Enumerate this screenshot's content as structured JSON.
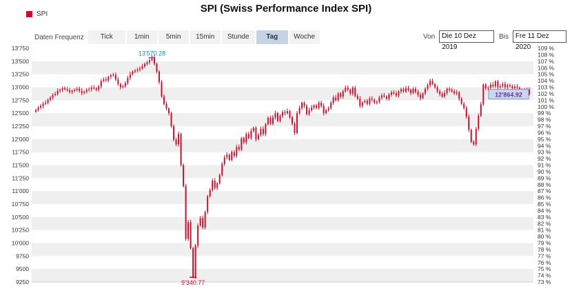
{
  "chart_data": {
    "type": "candlestick",
    "title": "SPI (Swiss Performance Index SPI)",
    "series": [
      {
        "name": "SPI",
        "color": "#c8102e"
      }
    ],
    "toolbar": {
      "label": "Daten Frequenz",
      "buttons": [
        "Tick",
        "1min",
        "5min",
        "15min",
        "Stunde",
        "Tag",
        "Woche"
      ],
      "active": "Tag"
    },
    "range": {
      "from_label": "Von",
      "from_value": "Die 10 Dez 2019",
      "to_label": "Bis",
      "to_value": "Fre 11 Dez 2020"
    },
    "y_left": {
      "min": 9250,
      "max": 13750,
      "ticks": [
        "13'750",
        "13'500",
        "13'250",
        "13'000",
        "12'750",
        "12'500",
        "12'250",
        "12'000",
        "11'750",
        "11'500",
        "11'250",
        "11'000",
        "10'750",
        "10'500",
        "10'250",
        "10'000",
        "9750",
        "9500",
        "9250"
      ]
    },
    "y_right": {
      "min": 73,
      "max": 109,
      "ticks": [
        "109 %",
        "108 %",
        "107 %",
        "106 %",
        "105 %",
        "104 %",
        "103 %",
        "102 %",
        "101 %",
        "100 %",
        "99 %",
        "98 %",
        "97 %",
        "96 %",
        "95 %",
        "94 %",
        "93 %",
        "92 %",
        "91 %",
        "90 %",
        "89 %",
        "88 %",
        "87 %",
        "86 %",
        "85 %",
        "84 %",
        "83 %",
        "82 %",
        "81 %",
        "80 %",
        "79 %",
        "78 %",
        "77 %",
        "76 %",
        "75 %",
        "74 %",
        "73 %"
      ]
    },
    "annotations": {
      "high_label": "13'570.28",
      "high_value": 13570.28,
      "low_label": "9'340.77",
      "low_value": 9340.77,
      "last_label": "12'864.92",
      "last_value": 12864.92
    },
    "grid": "horizontal-bands",
    "closes": [
      12560,
      12610,
      12640,
      12680,
      12700,
      12760,
      12800,
      12850,
      12870,
      12930,
      12950,
      12980,
      12960,
      12940,
      12910,
      12930,
      12950,
      12970,
      12930,
      12890,
      12910,
      12950,
      12960,
      12990,
      12980,
      12950,
      13020,
      13120,
      13150,
      13130,
      13200,
      13230,
      13240,
      13150,
      13060,
      13000,
      13020,
      13080,
      13180,
      13250,
      13300,
      13320,
      13340,
      13360,
      13400,
      13450,
      13480,
      13520,
      13570,
      13450,
      13300,
      13100,
      12820,
      12680,
      12590,
      12500,
      12250,
      11990,
      11900,
      12100,
      11500,
      11100,
      10080,
      10400,
      9900,
      9350,
      9950,
      10340,
      10480,
      10300,
      10600,
      10900,
      11020,
      11200,
      11060,
      11150,
      11310,
      11520,
      11650,
      11700,
      11600,
      11750,
      11680,
      11850,
      11800,
      12020,
      11940,
      12100,
      12020,
      12160,
      12220,
      12000,
      12080,
      12200,
      12100,
      12290,
      12410,
      12300,
      12420,
      12500,
      12350,
      12450,
      12520,
      12500,
      12540,
      12420,
      12300,
      12120,
      12500,
      12600,
      12700,
      12640,
      12480,
      12560,
      12610,
      12650,
      12600,
      12700,
      12640,
      12500,
      12560,
      12600,
      12700,
      12800,
      12750,
      12880,
      12820,
      12920,
      12990,
      12950,
      12880,
      12990,
      12830,
      12780,
      12640,
      12710,
      12740,
      12680,
      12780,
      12760,
      12700,
      12720,
      12800,
      12840,
      12820,
      12780,
      12860,
      12900,
      12880,
      12840,
      12920,
      12960,
      12920,
      12980,
      12950,
      12890,
      12970,
      12910,
      12850,
      12790,
      12880,
      12970,
      13040,
      13120,
      13060,
      13000,
      12920,
      12870,
      12820,
      12890,
      12970,
      12950,
      12920,
      12880,
      12900,
      12780,
      12680,
      12600,
      12430,
      12180,
      11950,
      11900,
      12200,
      12450,
      12670,
      13050,
      12980,
      12990,
      13050,
      13020,
      13110,
      13000,
      13020,
      13060,
      13000,
      13040,
      13020,
      12980,
      13010,
      12990,
      12930,
      12950,
      12880,
      12950,
      12864.92
    ]
  }
}
